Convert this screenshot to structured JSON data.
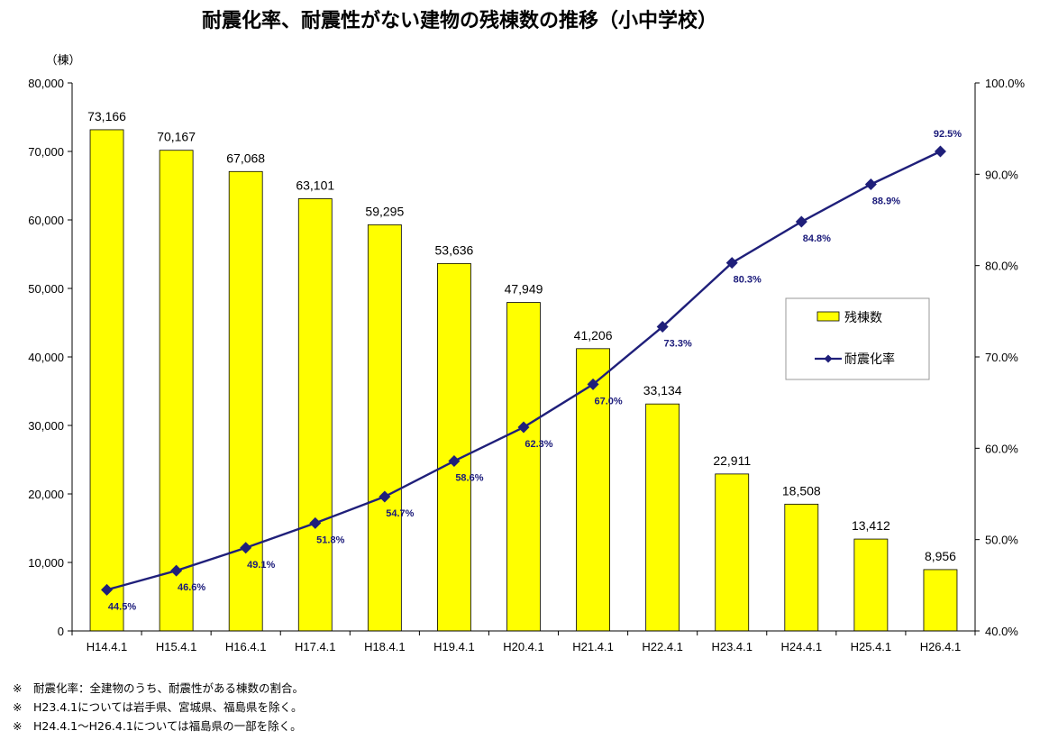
{
  "chart_data": {
    "type": "bar",
    "title": "耐震化率、耐震性がない建物の残棟数の推移（小中学校）",
    "ylabel": "（棟）",
    "categories": [
      "H14.4.1",
      "H15.4.1",
      "H16.4.1",
      "H17.4.1",
      "H18.4.1",
      "H19.4.1",
      "H20.4.1",
      "H21.4.1",
      "H22.4.1",
      "H23.4.1",
      "H24.4.1",
      "H25.4.1",
      "H26.4.1"
    ],
    "bar_labels": [
      "73,166",
      "70,167",
      "67,068",
      "63,101",
      "59,295",
      "53,636",
      "47,949",
      "41,206",
      "33,134",
      "22,911",
      "18,508",
      "13,412",
      "8,956"
    ],
    "line_labels": [
      "44.5%",
      "46.6%",
      "49.1%",
      "51.8%",
      "54.7%",
      "58.6%",
      "62.3%",
      "67.0%",
      "73.3%",
      "80.3%",
      "84.8%",
      "88.9%",
      "92.5%"
    ],
    "series": [
      {
        "name": "残棟数",
        "type": "bar",
        "axis": "left",
        "color": "#ffff00",
        "values": [
          73166,
          70167,
          67068,
          63101,
          59295,
          53636,
          47949,
          41206,
          33134,
          22911,
          18508,
          13412,
          8956
        ]
      },
      {
        "name": "耐震化率",
        "type": "line",
        "axis": "right",
        "color": "#1f1f7a",
        "values": [
          44.5,
          46.6,
          49.1,
          51.8,
          54.7,
          58.6,
          62.3,
          67.0,
          73.3,
          80.3,
          84.8,
          88.9,
          92.5
        ]
      }
    ],
    "ylim": [
      0,
      80000
    ],
    "yticks": [
      "0",
      "10,000",
      "20,000",
      "30,000",
      "40,000",
      "50,000",
      "60,000",
      "70,000",
      "80,000"
    ],
    "y2lim": [
      40,
      100
    ],
    "y2ticks": [
      "40.0%",
      "50.0%",
      "60.0%",
      "70.0%",
      "80.0%",
      "90.0%",
      "100.0%"
    ],
    "grid": false,
    "legend_position": "right"
  },
  "notes": [
    "※　耐震化率：全建物のうち、耐震性がある棟数の割合。",
    "※　H23.4.1については岩手県、宮城県、福島県を除く。",
    "※　H24.4.1～H26.4.1については福島県の一部を除く。"
  ]
}
